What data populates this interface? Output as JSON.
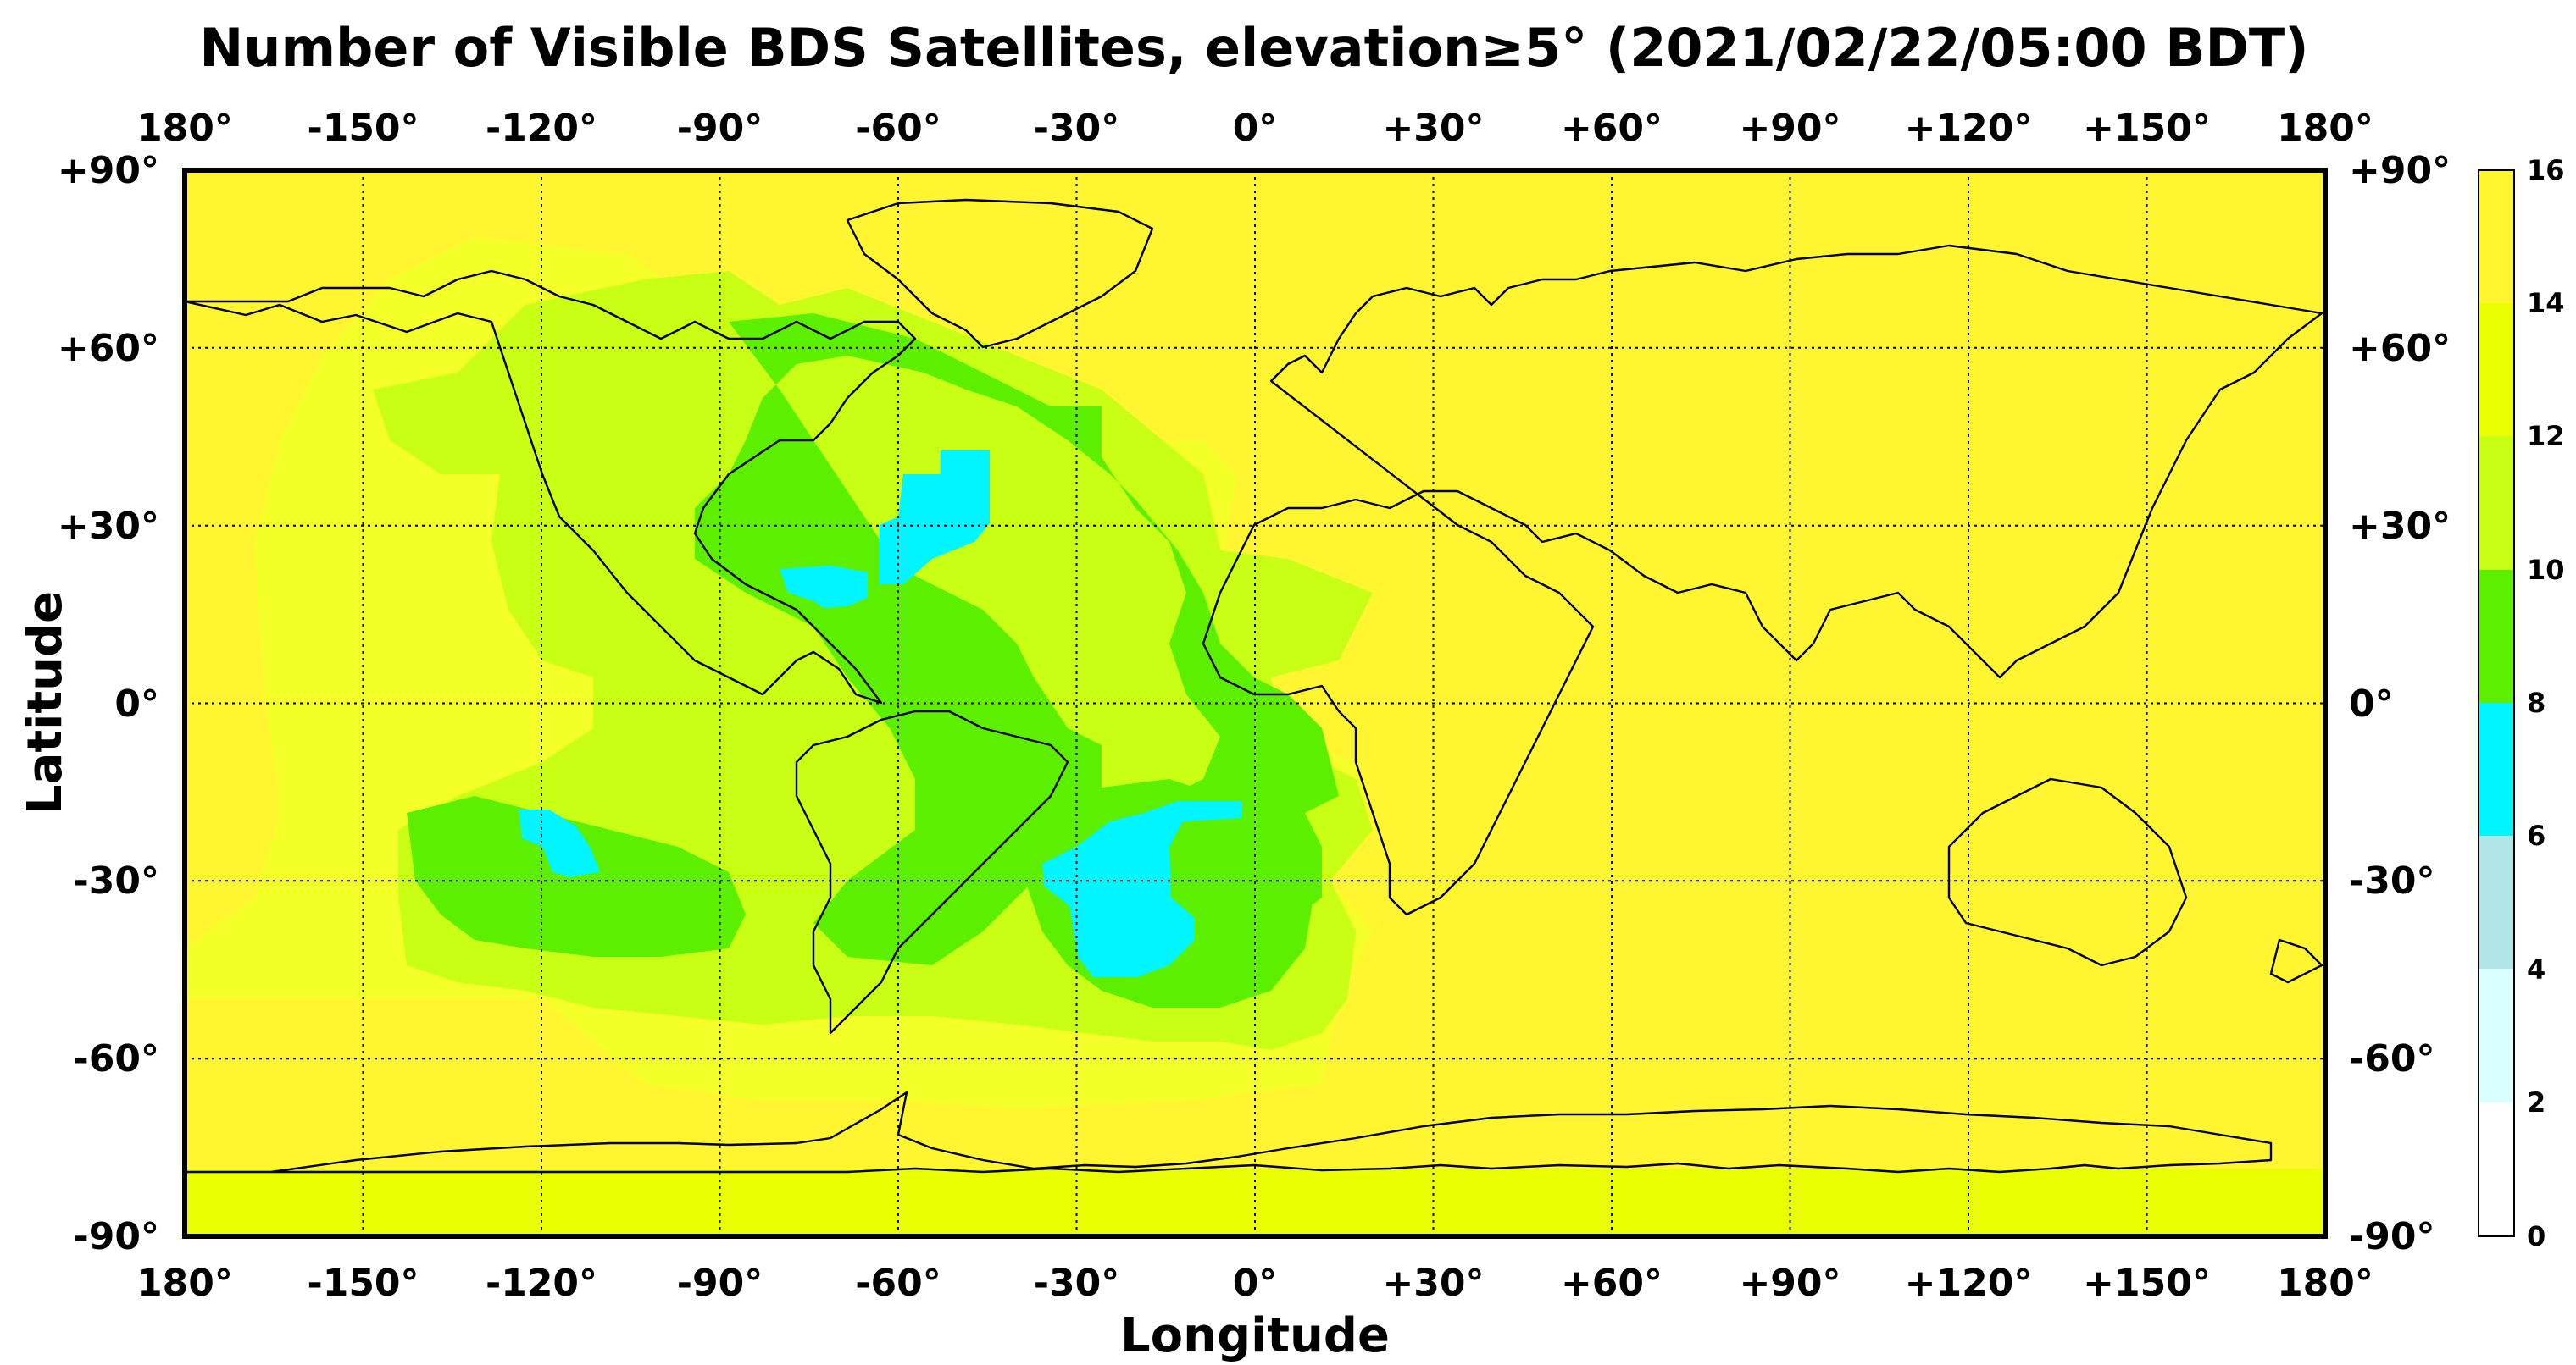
{
  "title": "Number of Visible BDS Satellites, elevation≥5° (2021/02/22/05:00 BDT)",
  "xlabel": "Longitude",
  "ylabel": "Latitude",
  "lon_ticks": [
    "180°",
    "-150°",
    "-120°",
    "-90°",
    "-60°",
    "-30°",
    "0°",
    "+30°",
    "+60°",
    "+90°",
    "+120°",
    "+150°",
    "180°"
  ],
  "lat_ticks": [
    "+90°",
    "+60°",
    "+30°",
    "0°",
    "-30°",
    "-60°",
    "-90°"
  ],
  "colorbar": {
    "ticks": [
      "0",
      "2",
      "4",
      "6",
      "8",
      "10",
      "12",
      "14",
      "16"
    ],
    "colors": [
      "#ffffff",
      "#d9ffff",
      "#b2e6e6",
      "#00f5ff",
      "#5cf000",
      "#c8ff14",
      "#eaff00",
      "#fff530"
    ]
  },
  "regions": {
    "background_value": 15,
    "areas": [
      {
        "value": 13,
        "desc": "Americas / Pacific / Atlantic lower band"
      },
      {
        "value": 11,
        "desc": "Americas and Atlantic reduced coverage"
      },
      {
        "value": 9,
        "desc": "North Atlantic, Caribbean, South Pacific, South Atlantic"
      },
      {
        "value": 7,
        "desc": "minimum coverage pockets"
      },
      {
        "value": 14,
        "desc": "Antarctic band"
      }
    ]
  }
}
